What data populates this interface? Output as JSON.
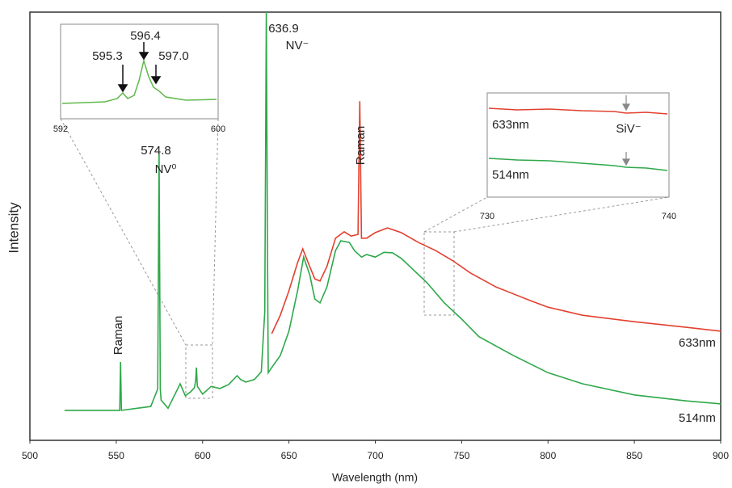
{
  "chart_data": {
    "type": "line",
    "x_label": "Wavelength (nm)",
    "y_label": "Intensity",
    "xlim": [
      500,
      900
    ],
    "xticks": [
      500,
      550,
      600,
      650,
      700,
      750,
      800,
      850,
      900
    ],
    "ylim": [
      0,
      100
    ],
    "grid": false,
    "series": [
      {
        "name": "633nm",
        "color": "#e2402f",
        "x": [
          640,
          645,
          650,
          655,
          658,
          662,
          665,
          668,
          672,
          677,
          682,
          686,
          690,
          691,
          692,
          695,
          700,
          707,
          715,
          725,
          735,
          745,
          755,
          770,
          790,
          800,
          820,
          850,
          880,
          900
        ],
        "values": [
          24.9,
          29.2,
          34.9,
          41.5,
          44.7,
          40.6,
          37.7,
          37.2,
          40.6,
          47.2,
          48.7,
          47.7,
          48.1,
          79.2,
          47.2,
          47.2,
          48.5,
          49.6,
          48.5,
          46.2,
          44.3,
          41.9,
          39.1,
          35.8,
          32.6,
          31.1,
          29.2,
          27.7,
          26.4,
          25.5
        ]
      },
      {
        "name": "514nm",
        "color": "#2ea84a",
        "x": [
          520,
          552,
          552.5,
          553,
          570,
          574,
          574.8,
          575.5,
          576,
          580,
          587,
          590,
          593,
          595.3,
          596,
          596.4,
          596.8,
          597,
          600,
          605,
          610,
          615,
          620,
          622,
          625,
          630,
          634,
          636,
          636.9,
          637.8,
          638,
          640,
          645,
          650,
          655,
          658.5,
          662,
          665,
          668,
          672,
          677,
          680,
          685,
          688,
          692,
          695,
          700,
          705,
          710,
          715,
          720,
          730,
          740,
          750,
          760,
          780,
          800,
          820,
          850,
          880,
          900
        ],
        "values": [
          7.0,
          7.0,
          18.3,
          7.0,
          7.9,
          12.0,
          67.0,
          12.0,
          9.4,
          7.5,
          13.2,
          10.4,
          11.3,
          12.3,
          14.0,
          17.0,
          14.0,
          12.6,
          10.8,
          12.6,
          12.1,
          13.0,
          15.1,
          14.2,
          13.6,
          14.2,
          16.0,
          30.0,
          100,
          30.0,
          15.8,
          17.0,
          19.8,
          25.5,
          34.9,
          42.8,
          38.7,
          33.0,
          32.1,
          35.8,
          44.3,
          46.6,
          46.2,
          44.3,
          42.8,
          43.4,
          42.8,
          43.9,
          43.8,
          42.5,
          40.6,
          36.8,
          32.1,
          28.3,
          24.2,
          19.8,
          15.8,
          13.2,
          10.6,
          9.2,
          8.5
        ]
      }
    ],
    "annotations": [
      "636.9",
      "NV⁻",
      "574.8",
      "NV⁰",
      "Raman",
      "Raman"
    ],
    "insets": [
      {
        "xlim": [
          592,
          600
        ],
        "xticks": [
          592,
          600
        ],
        "annotations": [
          "595.3",
          "596.4",
          "597.0"
        ]
      },
      {
        "xlim": [
          730,
          740
        ],
        "xticks": [
          730,
          740
        ],
        "annotations": [
          "633nm",
          "514nm",
          "SiV⁻"
        ]
      }
    ]
  }
}
